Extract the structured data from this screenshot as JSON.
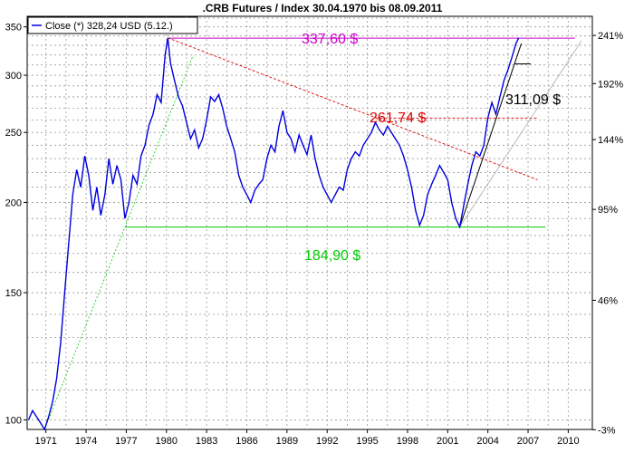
{
  "chart_data": {
    "type": "line",
    "title": ".CRB Futures / Index 30.04.1970 bis 08.09.2011",
    "legend": {
      "label": "Close (*) 328,24 USD (5.12.)",
      "placement": "top-left"
    },
    "y_scale": "log",
    "ylim": [
      97,
      362
    ],
    "xlim": [
      1969.6,
      2011.8
    ],
    "grid": true,
    "x_ticks": [
      {
        "value": 1971,
        "label": "1971"
      },
      {
        "value": 1974,
        "label": "1974"
      },
      {
        "value": 1977,
        "label": "1977"
      },
      {
        "value": 1980,
        "label": "1980"
      },
      {
        "value": 1983,
        "label": "1983"
      },
      {
        "value": 1986,
        "label": "1986"
      },
      {
        "value": 1989,
        "label": "1989"
      },
      {
        "value": 1992,
        "label": "1992"
      },
      {
        "value": 1995,
        "label": "1995"
      },
      {
        "value": 1998,
        "label": "1998"
      },
      {
        "value": 2001,
        "label": "2001"
      },
      {
        "value": 2004,
        "label": "2004"
      },
      {
        "value": 2007,
        "label": "2007"
      },
      {
        "value": 2010,
        "label": "2010"
      }
    ],
    "y_ticks_left": [
      {
        "value": 100,
        "label": "100"
      },
      {
        "value": 150,
        "label": "150"
      },
      {
        "value": 200,
        "label": "200"
      },
      {
        "value": 250,
        "label": "250"
      },
      {
        "value": 300,
        "label": "300"
      },
      {
        "value": 350,
        "label": "350"
      }
    ],
    "y_ticks_right": [
      {
        "value": 96.9,
        "label": "-3%"
      },
      {
        "value": 146.4,
        "label": "46%"
      },
      {
        "value": 195.6,
        "label": "95%"
      },
      {
        "value": 244.4,
        "label": "144%"
      },
      {
        "value": 292.1,
        "label": "192%"
      },
      {
        "value": 340.6,
        "label": "241%"
      }
    ],
    "series": [
      {
        "color": "#0000dd",
        "points": [
          [
            1969.7,
            100
          ],
          [
            1970.0,
            103
          ],
          [
            1970.3,
            101
          ],
          [
            1970.6,
            99
          ],
          [
            1970.9,
            97
          ],
          [
            1971.2,
            101
          ],
          [
            1971.5,
            106
          ],
          [
            1971.8,
            114
          ],
          [
            1972.1,
            128
          ],
          [
            1972.4,
            150
          ],
          [
            1972.7,
            175
          ],
          [
            1973.0,
            205
          ],
          [
            1973.3,
            222
          ],
          [
            1973.6,
            210
          ],
          [
            1973.9,
            232
          ],
          [
            1974.2,
            218
          ],
          [
            1974.5,
            195
          ],
          [
            1974.8,
            210
          ],
          [
            1975.1,
            192
          ],
          [
            1975.4,
            205
          ],
          [
            1975.7,
            230
          ],
          [
            1976.0,
            212
          ],
          [
            1976.3,
            225
          ],
          [
            1976.6,
            215
          ],
          [
            1976.9,
            190
          ],
          [
            1977.2,
            200
          ],
          [
            1977.5,
            218
          ],
          [
            1977.8,
            212
          ],
          [
            1978.1,
            232
          ],
          [
            1978.4,
            240
          ],
          [
            1978.7,
            256
          ],
          [
            1979.0,
            265
          ],
          [
            1979.3,
            282
          ],
          [
            1979.6,
            275
          ],
          [
            1979.9,
            320
          ],
          [
            1980.1,
            338
          ],
          [
            1980.3,
            312
          ],
          [
            1980.6,
            295
          ],
          [
            1980.9,
            280
          ],
          [
            1981.2,
            272
          ],
          [
            1981.5,
            258
          ],
          [
            1981.8,
            245
          ],
          [
            1982.1,
            252
          ],
          [
            1982.4,
            238
          ],
          [
            1982.7,
            245
          ],
          [
            1983.0,
            260
          ],
          [
            1983.3,
            280
          ],
          [
            1983.6,
            276
          ],
          [
            1983.9,
            282
          ],
          [
            1984.2,
            270
          ],
          [
            1984.5,
            255
          ],
          [
            1984.8,
            245
          ],
          [
            1985.1,
            235
          ],
          [
            1985.4,
            218
          ],
          [
            1985.7,
            210
          ],
          [
            1986.0,
            205
          ],
          [
            1986.3,
            200
          ],
          [
            1986.6,
            208
          ],
          [
            1986.9,
            212
          ],
          [
            1987.2,
            215
          ],
          [
            1987.5,
            230
          ],
          [
            1987.8,
            240
          ],
          [
            1988.1,
            235
          ],
          [
            1988.4,
            255
          ],
          [
            1988.7,
            268
          ],
          [
            1989.0,
            250
          ],
          [
            1989.3,
            245
          ],
          [
            1989.6,
            235
          ],
          [
            1989.9,
            248
          ],
          [
            1990.2,
            240
          ],
          [
            1990.5,
            233
          ],
          [
            1990.8,
            248
          ],
          [
            1991.1,
            230
          ],
          [
            1991.4,
            218
          ],
          [
            1991.7,
            210
          ],
          [
            1992.0,
            205
          ],
          [
            1992.3,
            200
          ],
          [
            1992.6,
            205
          ],
          [
            1992.9,
            210
          ],
          [
            1993.2,
            208
          ],
          [
            1993.5,
            222
          ],
          [
            1993.8,
            230
          ],
          [
            1994.1,
            235
          ],
          [
            1994.4,
            232
          ],
          [
            1994.7,
            240
          ],
          [
            1995.0,
            245
          ],
          [
            1995.3,
            250
          ],
          [
            1995.6,
            258
          ],
          [
            1995.9,
            252
          ],
          [
            1996.2,
            248
          ],
          [
            1996.5,
            255
          ],
          [
            1996.8,
            250
          ],
          [
            1997.1,
            245
          ],
          [
            1997.4,
            240
          ],
          [
            1997.7,
            232
          ],
          [
            1998.0,
            222
          ],
          [
            1998.3,
            210
          ],
          [
            1998.6,
            195
          ],
          [
            1998.9,
            186
          ],
          [
            1999.2,
            192
          ],
          [
            1999.5,
            205
          ],
          [
            1999.8,
            212
          ],
          [
            2000.1,
            218
          ],
          [
            2000.4,
            225
          ],
          [
            2000.7,
            220
          ],
          [
            2001.0,
            215
          ],
          [
            2001.3,
            200
          ],
          [
            2001.6,
            190
          ],
          [
            2001.9,
            185
          ],
          [
            2002.2,
            198
          ],
          [
            2002.5,
            212
          ],
          [
            2002.8,
            225
          ],
          [
            2003.1,
            235
          ],
          [
            2003.4,
            232
          ],
          [
            2003.7,
            240
          ],
          [
            2004.0,
            262
          ],
          [
            2004.3,
            275
          ],
          [
            2004.6,
            265
          ],
          [
            2004.9,
            280
          ],
          [
            2005.2,
            295
          ],
          [
            2005.5,
            305
          ],
          [
            2005.8,
            318
          ],
          [
            2006.1,
            332
          ],
          [
            2006.3,
            338
          ]
        ]
      }
    ],
    "trendlines": [
      {
        "label": "337,60 $",
        "value": 337.6,
        "color": "#cc00cc",
        "style": "solid"
      },
      {
        "label": "261,74 $",
        "value": 261.74,
        "color": "#dd0000",
        "style": "dashed"
      },
      {
        "label": "184,90 $",
        "value": 184.9,
        "color": "#00cc00",
        "style": "solid"
      },
      {
        "label": "311,09 $",
        "value": 311.09,
        "color": "#000000",
        "style": "solid"
      }
    ]
  }
}
